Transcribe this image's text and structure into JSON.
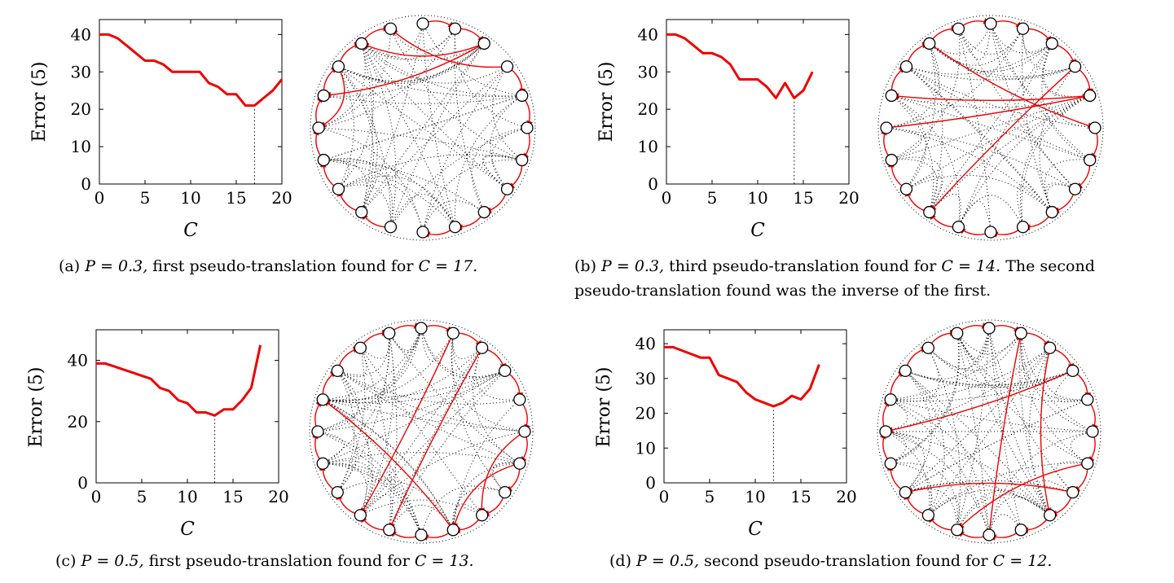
{
  "chart_data": [
    {
      "type": "line",
      "panel": "a",
      "ylabel": "Error (5)",
      "xlabel": "C",
      "xlim": [
        0,
        20
      ],
      "ylim": [
        0,
        44
      ],
      "xticks": [
        0,
        5,
        10,
        15,
        20
      ],
      "yticks": [
        0,
        10,
        20,
        30,
        40
      ],
      "x": [
        0,
        1,
        2,
        3,
        4,
        5,
        6,
        7,
        8,
        9,
        10,
        11,
        12,
        13,
        14,
        15,
        16,
        17,
        18,
        19,
        20
      ],
      "values": [
        40,
        40,
        39,
        37,
        35,
        33,
        33,
        32,
        30,
        30,
        30,
        30,
        27,
        26,
        24,
        24,
        21,
        21,
        23,
        25,
        28
      ],
      "marker_x": 17,
      "caption": {
        "label": "(a)",
        "p": "P = 0.3",
        "text": "first pseudo-translation found for",
        "c": "C = 17."
      },
      "color": "#ee0000"
    },
    {
      "type": "line",
      "panel": "b",
      "ylabel": "Error (5)",
      "xlabel": "C",
      "xlim": [
        0,
        20
      ],
      "ylim": [
        0,
        44
      ],
      "xticks": [
        0,
        5,
        10,
        15,
        20
      ],
      "yticks": [
        0,
        10,
        20,
        30,
        40
      ],
      "x": [
        0,
        1,
        2,
        3,
        4,
        5,
        6,
        7,
        8,
        9,
        10,
        11,
        12,
        13,
        14,
        15,
        16
      ],
      "values": [
        40,
        40,
        39,
        37,
        35,
        35,
        34,
        32,
        28,
        28,
        28,
        26,
        23,
        27,
        23,
        25,
        30
      ],
      "marker_x": 14,
      "caption": {
        "label": "(b)",
        "p": "P = 0.3",
        "text": "third pseudo-translation found for",
        "c": "C = 14.",
        "line1_rest": "The second",
        "line2": "pseudo-translation found was the inverse of the first."
      },
      "color": "#ee0000"
    },
    {
      "type": "line",
      "panel": "c",
      "ylabel": "Error (5)",
      "xlabel": "C",
      "xlim": [
        0,
        20
      ],
      "ylim": [
        0,
        50
      ],
      "xticks": [
        0,
        5,
        10,
        15,
        20
      ],
      "yticks": [
        0,
        20,
        40
      ],
      "x": [
        0,
        1,
        2,
        3,
        4,
        5,
        6,
        7,
        8,
        9,
        10,
        11,
        12,
        13,
        14,
        15,
        16,
        17,
        18
      ],
      "values": [
        39,
        39,
        38,
        37,
        36,
        35,
        34,
        31,
        30,
        27,
        26,
        23,
        23,
        22,
        24,
        24,
        27,
        31,
        45
      ],
      "marker_x": 13,
      "caption": {
        "label": "(c)",
        "p": "P = 0.5",
        "text": "first pseudo-translation found for",
        "c": "C = 13."
      },
      "color": "#ee0000"
    },
    {
      "type": "line",
      "panel": "d",
      "ylabel": "Error (5)",
      "xlabel": "C",
      "xlim": [
        0,
        20
      ],
      "ylim": [
        0,
        44
      ],
      "xticks": [
        0,
        5,
        10,
        15,
        20
      ],
      "yticks": [
        0,
        10,
        20,
        30,
        40
      ],
      "x": [
        0,
        1,
        2,
        3,
        4,
        5,
        6,
        7,
        8,
        9,
        10,
        11,
        12,
        13,
        14,
        15,
        16,
        17
      ],
      "values": [
        39,
        39,
        38,
        37,
        36,
        36,
        31,
        30,
        29,
        26,
        24,
        23,
        22,
        23,
        25,
        24,
        27,
        34
      ],
      "marker_x": 12,
      "caption": {
        "label": "(d)",
        "p": "P = 0.5",
        "text": "second pseudo-translation found for",
        "c": "C = 12."
      },
      "color": "#ee0000"
    }
  ],
  "graphs": [
    {
      "panel": "a",
      "nodes": 20,
      "dotted_edges": 60,
      "red_edges": [
        [
          0,
          1
        ],
        [
          1,
          2
        ],
        [
          3,
          4
        ],
        [
          4,
          5
        ],
        [
          5,
          6
        ],
        [
          6,
          7
        ],
        [
          7,
          8
        ],
        [
          8,
          9
        ],
        [
          9,
          10
        ],
        [
          11,
          12
        ],
        [
          12,
          13
        ],
        [
          13,
          14
        ],
        [
          14,
          15
        ],
        [
          15,
          16
        ],
        [
          16,
          17
        ],
        [
          17,
          18
        ],
        [
          18,
          19
        ],
        [
          2,
          16
        ],
        [
          2,
          18
        ],
        [
          17,
          15
        ],
        [
          3,
          19
        ]
      ]
    },
    {
      "panel": "b",
      "nodes": 20,
      "dotted_edges": 60,
      "red_edges": [
        [
          0,
          1
        ],
        [
          1,
          2
        ],
        [
          2,
          3
        ],
        [
          3,
          4
        ],
        [
          5,
          6
        ],
        [
          6,
          7
        ],
        [
          7,
          8
        ],
        [
          8,
          9
        ],
        [
          9,
          10
        ],
        [
          10,
          11
        ],
        [
          11,
          12
        ],
        [
          12,
          13
        ],
        [
          13,
          14
        ],
        [
          14,
          15
        ],
        [
          16,
          17
        ],
        [
          17,
          18
        ],
        [
          18,
          19
        ],
        [
          19,
          0
        ],
        [
          3,
          12
        ],
        [
          4,
          16
        ],
        [
          18,
          5
        ],
        [
          15,
          4
        ]
      ]
    },
    {
      "panel": "c",
      "nodes": 20,
      "dotted_edges": 70,
      "red_edges": [
        [
          0,
          1
        ],
        [
          1,
          2
        ],
        [
          2,
          3
        ],
        [
          3,
          4
        ],
        [
          4,
          5
        ],
        [
          5,
          6
        ],
        [
          6,
          7
        ],
        [
          7,
          8
        ],
        [
          8,
          9
        ],
        [
          9,
          10
        ],
        [
          10,
          11
        ],
        [
          11,
          12
        ],
        [
          12,
          13
        ],
        [
          13,
          14
        ],
        [
          14,
          15
        ],
        [
          15,
          16
        ],
        [
          16,
          17
        ],
        [
          17,
          18
        ],
        [
          18,
          19
        ],
        [
          19,
          0
        ],
        [
          1,
          12
        ],
        [
          2,
          11
        ],
        [
          5,
          8
        ],
        [
          6,
          9
        ],
        [
          9,
          16
        ]
      ]
    },
    {
      "panel": "d",
      "nodes": 20,
      "dotted_edges": 70,
      "red_edges": [
        [
          0,
          1
        ],
        [
          1,
          2
        ],
        [
          2,
          3
        ],
        [
          3,
          4
        ],
        [
          4,
          5
        ],
        [
          5,
          6
        ],
        [
          6,
          7
        ],
        [
          7,
          8
        ],
        [
          8,
          9
        ],
        [
          9,
          10
        ],
        [
          10,
          11
        ],
        [
          11,
          12
        ],
        [
          12,
          13
        ],
        [
          13,
          14
        ],
        [
          14,
          15
        ],
        [
          15,
          16
        ],
        [
          16,
          17
        ],
        [
          17,
          18
        ],
        [
          18,
          19
        ],
        [
          19,
          0
        ],
        [
          2,
          8
        ],
        [
          3,
          15
        ],
        [
          6,
          11
        ],
        [
          7,
          13
        ],
        [
          10,
          1
        ]
      ]
    }
  ]
}
